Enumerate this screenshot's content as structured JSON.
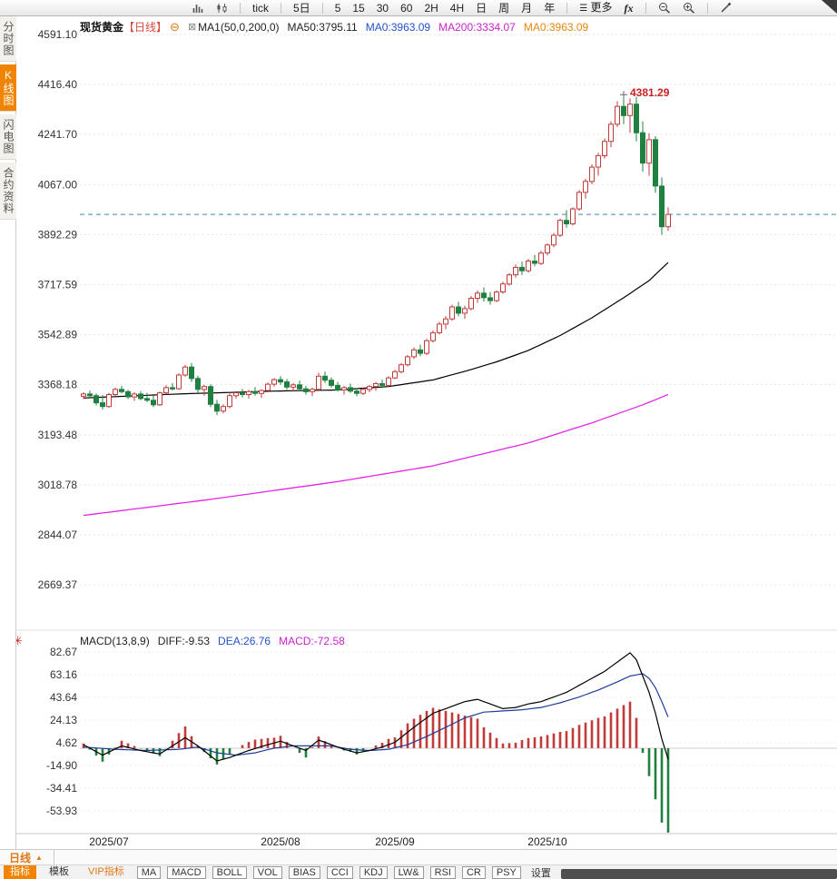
{
  "colors": {
    "accent": "#f08300",
    "orange_text": "#e07818",
    "tag_red": "#d9483b",
    "val_blue": "#2451cc",
    "val_magenta": "#cc22cc",
    "val_orange": "#e6870e",
    "up": "#c13b3b",
    "down": "#1f8040",
    "ma50": "#000000",
    "ma200": "#e326e3",
    "diff_line": "#000000",
    "dea_line": "#1f3d99",
    "last_price_line": "#4688b0",
    "annotation_red": "#cc2020"
  },
  "icons": {
    "collapse": "⊖",
    "delete_indicator": "⊠",
    "hamburger": "☰",
    "arrow_up": "▲",
    "indicator_settings": "✳"
  },
  "toolbar": {
    "groups": [
      [
        "tick"
      ],
      [
        "5日"
      ],
      [
        "5",
        "15",
        "30",
        "60",
        "2H",
        "4H",
        "日",
        "周",
        "月",
        "年"
      ]
    ],
    "more": "更多",
    "fx": "fx"
  },
  "sidebar": {
    "items": [
      {
        "key": "time-chart",
        "label": "分时图",
        "active": false
      },
      {
        "key": "kline-chart",
        "label": "K线图",
        "active": true
      },
      {
        "key": "lightning-chart",
        "label": "闪电图",
        "active": false
      },
      {
        "key": "contract-info",
        "label": "合约资料",
        "active": false
      }
    ]
  },
  "chart_header": {
    "symbol": "现货黄金",
    "period_tag": "【日线】",
    "ma_settings": "MA1(50,0,200,0)",
    "ma50": "MA50:3795.11",
    "ma0_blue": "MA0:3963.09",
    "ma200": "MA200:3334.07",
    "ma0_orange": "MA0:3963.09"
  },
  "macd_header": {
    "title": "MACD(13,8,9)",
    "diff": "DIFF:-9.53",
    "dea": "DEA:26.76",
    "macd": "MACD:-72.58"
  },
  "bottom": {
    "period_selector": "日线",
    "tabs": [
      {
        "key": "indicator",
        "label": "指标",
        "style": "active"
      },
      {
        "key": "template",
        "label": "模板",
        "style": ""
      },
      {
        "key": "vip-indicator",
        "label": "VIP指标",
        "style": "vip"
      }
    ],
    "indicator_buttons": [
      "MA",
      "MACD",
      "BOLL",
      "VOL",
      "BIAS",
      "CCI",
      "KDJ",
      "LW&",
      "RSI",
      "CR",
      "PSY"
    ],
    "settings": "设置"
  },
  "chart_data": {
    "type": "candlestick",
    "title": "现货黄金 日线 (Spot Gold daily)",
    "price_axis_labels": [
      "4591.10",
      "4416.40",
      "4241.70",
      "4067.00",
      "3892.29",
      "3717.59",
      "3542.89",
      "3368.18",
      "3193.48",
      "3018.78",
      "2844.07",
      "2669.37"
    ],
    "macd_axis_labels": [
      "82.67",
      "63.16",
      "43.64",
      "24.13",
      "4.62",
      "-14.90",
      "-34.41",
      "-53.93"
    ],
    "x_axis": [
      {
        "label": "2025/07",
        "index": 4
      },
      {
        "label": "2025/08",
        "index": 31
      },
      {
        "label": "2025/09",
        "index": 49
      },
      {
        "label": "2025/10",
        "index": 73
      }
    ],
    "last_price": 3963.09,
    "peak_annotation": {
      "value": "4381.29",
      "index": 85,
      "price": 4381.29
    },
    "candles": [
      [
        3328,
        3342,
        3318,
        3336
      ],
      [
        3336,
        3348,
        3322,
        3330
      ],
      [
        3330,
        3338,
        3296,
        3305
      ],
      [
        3305,
        3332,
        3282,
        3292
      ],
      [
        3292,
        3340,
        3288,
        3334
      ],
      [
        3334,
        3358,
        3328,
        3352
      ],
      [
        3352,
        3364,
        3338,
        3344
      ],
      [
        3344,
        3350,
        3318,
        3326
      ],
      [
        3326,
        3342,
        3312,
        3336
      ],
      [
        3336,
        3346,
        3314,
        3320
      ],
      [
        3320,
        3340,
        3308,
        3314
      ],
      [
        3314,
        3330,
        3290,
        3298
      ],
      [
        3298,
        3344,
        3294,
        3340
      ],
      [
        3340,
        3366,
        3334,
        3358
      ],
      [
        3358,
        3374,
        3348,
        3354
      ],
      [
        3354,
        3408,
        3350,
        3402
      ],
      [
        3402,
        3438,
        3396,
        3430
      ],
      [
        3430,
        3444,
        3378,
        3390
      ],
      [
        3390,
        3400,
        3340,
        3352
      ],
      [
        3352,
        3368,
        3330,
        3362
      ],
      [
        3362,
        3370,
        3290,
        3300
      ],
      [
        3300,
        3316,
        3262,
        3276
      ],
      [
        3276,
        3300,
        3268,
        3292
      ],
      [
        3292,
        3338,
        3286,
        3330
      ],
      [
        3330,
        3346,
        3320,
        3340
      ],
      [
        3340,
        3354,
        3324,
        3334
      ],
      [
        3334,
        3350,
        3320,
        3344
      ],
      [
        3344,
        3360,
        3330,
        3338
      ],
      [
        3338,
        3352,
        3322,
        3348
      ],
      [
        3348,
        3376,
        3342,
        3370
      ],
      [
        3370,
        3392,
        3362,
        3386
      ],
      [
        3386,
        3398,
        3368,
        3378
      ],
      [
        3378,
        3388,
        3352,
        3360
      ],
      [
        3360,
        3374,
        3344,
        3368
      ],
      [
        3368,
        3382,
        3348,
        3354
      ],
      [
        3354,
        3364,
        3334,
        3344
      ],
      [
        3344,
        3358,
        3328,
        3352
      ],
      [
        3352,
        3410,
        3348,
        3398
      ],
      [
        3398,
        3414,
        3374,
        3384
      ],
      [
        3384,
        3394,
        3358,
        3366
      ],
      [
        3366,
        3378,
        3344,
        3350
      ],
      [
        3350,
        3364,
        3334,
        3358
      ],
      [
        3358,
        3372,
        3340,
        3346
      ],
      [
        3346,
        3356,
        3328,
        3338
      ],
      [
        3338,
        3358,
        3332,
        3352
      ],
      [
        3352,
        3368,
        3342,
        3362
      ],
      [
        3362,
        3378,
        3348,
        3372
      ],
      [
        3372,
        3386,
        3356,
        3366
      ],
      [
        3366,
        3398,
        3360,
        3392
      ],
      [
        3392,
        3420,
        3388,
        3414
      ],
      [
        3414,
        3444,
        3408,
        3438
      ],
      [
        3438,
        3472,
        3432,
        3466
      ],
      [
        3466,
        3498,
        3458,
        3490
      ],
      [
        3490,
        3508,
        3468,
        3478
      ],
      [
        3478,
        3528,
        3472,
        3522
      ],
      [
        3522,
        3558,
        3516,
        3550
      ],
      [
        3550,
        3588,
        3544,
        3580
      ],
      [
        3580,
        3608,
        3562,
        3598
      ],
      [
        3598,
        3648,
        3592,
        3640
      ],
      [
        3640,
        3658,
        3608,
        3618
      ],
      [
        3618,
        3644,
        3598,
        3634
      ],
      [
        3634,
        3678,
        3628,
        3670
      ],
      [
        3670,
        3698,
        3654,
        3688
      ],
      [
        3688,
        3708,
        3658,
        3672
      ],
      [
        3672,
        3692,
        3648,
        3662
      ],
      [
        3662,
        3698,
        3656,
        3692
      ],
      [
        3692,
        3728,
        3686,
        3720
      ],
      [
        3720,
        3758,
        3714,
        3752
      ],
      [
        3752,
        3788,
        3742,
        3778
      ],
      [
        3778,
        3798,
        3752,
        3766
      ],
      [
        3766,
        3808,
        3760,
        3800
      ],
      [
        3800,
        3822,
        3782,
        3792
      ],
      [
        3792,
        3836,
        3786,
        3828
      ],
      [
        3828,
        3862,
        3820,
        3856
      ],
      [
        3856,
        3898,
        3848,
        3890
      ],
      [
        3890,
        3948,
        3884,
        3942
      ],
      [
        3942,
        3978,
        3916,
        3930
      ],
      [
        3930,
        3988,
        3924,
        3982
      ],
      [
        3982,
        4048,
        3976,
        4040
      ],
      [
        4040,
        4088,
        4018,
        4078
      ],
      [
        4078,
        4138,
        4068,
        4128
      ],
      [
        4128,
        4178,
        4098,
        4168
      ],
      [
        4168,
        4228,
        4158,
        4218
      ],
      [
        4218,
        4288,
        4198,
        4278
      ],
      [
        4278,
        4358,
        4268,
        4340
      ],
      [
        4340,
        4381.29,
        4278,
        4308
      ],
      [
        4308,
        4368,
        4248,
        4348
      ],
      [
        4348,
        4374,
        4218,
        4248
      ],
      [
        4248,
        4288,
        4112,
        4142
      ],
      [
        4142,
        4246,
        4098,
        4224
      ],
      [
        4224,
        4236,
        4038,
        4062
      ],
      [
        4062,
        4092,
        3892,
        3920
      ],
      [
        3920,
        3988,
        3906,
        3963
      ]
    ],
    "ma50_points": [
      [
        0,
        3322
      ],
      [
        15,
        3336
      ],
      [
        30,
        3346
      ],
      [
        40,
        3350
      ],
      [
        48,
        3362
      ],
      [
        55,
        3385
      ],
      [
        60,
        3415
      ],
      [
        65,
        3448
      ],
      [
        70,
        3488
      ],
      [
        75,
        3540
      ],
      [
        80,
        3602
      ],
      [
        85,
        3672
      ],
      [
        89,
        3732
      ],
      [
        92,
        3795
      ]
    ],
    "ma200_points": [
      [
        0,
        2912
      ],
      [
        20,
        2968
      ],
      [
        40,
        3030
      ],
      [
        55,
        3085
      ],
      [
        70,
        3165
      ],
      [
        80,
        3235
      ],
      [
        88,
        3298
      ],
      [
        92,
        3334
      ]
    ],
    "diff_points": [
      [
        0,
        3
      ],
      [
        3,
        -6
      ],
      [
        6,
        2
      ],
      [
        9,
        -2
      ],
      [
        12,
        -5
      ],
      [
        16,
        9
      ],
      [
        18,
        2
      ],
      [
        21,
        -11
      ],
      [
        23,
        -8
      ],
      [
        26,
        -2
      ],
      [
        29,
        3
      ],
      [
        31,
        6
      ],
      [
        33,
        2
      ],
      [
        35,
        -2
      ],
      [
        37,
        7
      ],
      [
        39,
        3
      ],
      [
        41,
        -1
      ],
      [
        43,
        -4
      ],
      [
        45,
        -2
      ],
      [
        47,
        1
      ],
      [
        49,
        5
      ],
      [
        52,
        18
      ],
      [
        55,
        30
      ],
      [
        58,
        36
      ],
      [
        60,
        40
      ],
      [
        62,
        42
      ],
      [
        64,
        38
      ],
      [
        66,
        34
      ],
      [
        68,
        35
      ],
      [
        70,
        38
      ],
      [
        72,
        40
      ],
      [
        74,
        44
      ],
      [
        76,
        48
      ],
      [
        78,
        54
      ],
      [
        80,
        60
      ],
      [
        82,
        66
      ],
      [
        84,
        74
      ],
      [
        86,
        82
      ],
      [
        87,
        76
      ],
      [
        88,
        62
      ],
      [
        89,
        48
      ],
      [
        90,
        30
      ],
      [
        91,
        8
      ],
      [
        92,
        -9.53
      ]
    ],
    "dea_points": [
      [
        0,
        1
      ],
      [
        5,
        -1
      ],
      [
        10,
        -2
      ],
      [
        15,
        -1
      ],
      [
        18,
        1
      ],
      [
        21,
        -4
      ],
      [
        24,
        -6
      ],
      [
        27,
        -4
      ],
      [
        30,
        0
      ],
      [
        33,
        2
      ],
      [
        36,
        2
      ],
      [
        39,
        2
      ],
      [
        42,
        -1
      ],
      [
        45,
        -2
      ],
      [
        48,
        -1
      ],
      [
        51,
        3
      ],
      [
        54,
        10
      ],
      [
        57,
        18
      ],
      [
        60,
        26
      ],
      [
        63,
        31
      ],
      [
        66,
        32
      ],
      [
        69,
        33
      ],
      [
        72,
        35
      ],
      [
        75,
        39
      ],
      [
        78,
        44
      ],
      [
        81,
        50
      ],
      [
        84,
        57
      ],
      [
        86,
        62
      ],
      [
        88,
        64
      ],
      [
        89,
        60
      ],
      [
        90,
        52
      ],
      [
        91,
        40
      ],
      [
        92,
        26.76
      ]
    ]
  }
}
